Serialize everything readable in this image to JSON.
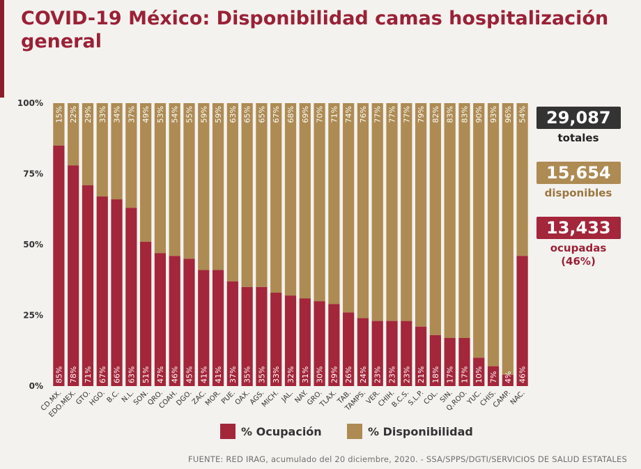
{
  "title": "COVID-19 México: Disponibilidad camas hospitalización general",
  "colors": {
    "occupied": "#a3263a",
    "available": "#ad8b53",
    "title": "#9a2136",
    "totals_box": "#333333"
  },
  "stats": {
    "totals_value": "29,087",
    "totals_label": "totales",
    "available_value": "15,654",
    "available_label": "disponibles",
    "occupied_value": "13,433",
    "occupied_label": "ocupadas",
    "occupied_pct": "(46%)"
  },
  "legend": {
    "occupied": "% Ocupación",
    "available": "% Disponibilidad"
  },
  "footer": "FUENTE: RED IRAG, acumulado del 20 diciembre, 2020. -   SSA/SPPS/DGTI/SERVICIOS DE SALUD ESTATALES",
  "chart_data": {
    "type": "bar",
    "stacked": true,
    "categories": [
      "CD.MX.",
      "EDO.MEX.",
      "GTO.",
      "HGO.",
      "B.C.",
      "N.L.",
      "SON.",
      "QRO.",
      "COAH.",
      "DGO.",
      "ZAC.",
      "MOR.",
      "PUE.",
      "OAX.",
      "AGS.",
      "MICH.",
      "JAL.",
      "NAY.",
      "GRO.",
      "TLAX.",
      "TAB.",
      "TAMPS.",
      "VER.",
      "CHIH.",
      "B.C.S.",
      "S.L.P.",
      "COL.",
      "SIN.",
      "Q.ROO.",
      "YUC.",
      "CHIS.",
      "CAMP.",
      "NAC."
    ],
    "series": [
      {
        "name": "% Ocupación",
        "values": [
          85,
          78,
          71,
          67,
          66,
          63,
          51,
          47,
          46,
          45,
          41,
          41,
          37,
          35,
          35,
          33,
          32,
          31,
          30,
          29,
          26,
          24,
          23,
          23,
          23,
          21,
          18,
          17,
          17,
          10,
          7,
          4,
          46
        ]
      },
      {
        "name": "% Disponibilidad",
        "values": [
          15,
          22,
          29,
          33,
          34,
          37,
          49,
          53,
          54,
          55,
          59,
          59,
          63,
          65,
          65,
          67,
          68,
          69,
          70,
          71,
          74,
          76,
          77,
          77,
          77,
          79,
          82,
          83,
          83,
          90,
          93,
          96,
          54
        ]
      }
    ],
    "yticks": [
      "0%",
      "25%",
      "50%",
      "75%",
      "100%"
    ],
    "ylim": [
      0,
      100
    ],
    "legend_position": "bottom"
  }
}
